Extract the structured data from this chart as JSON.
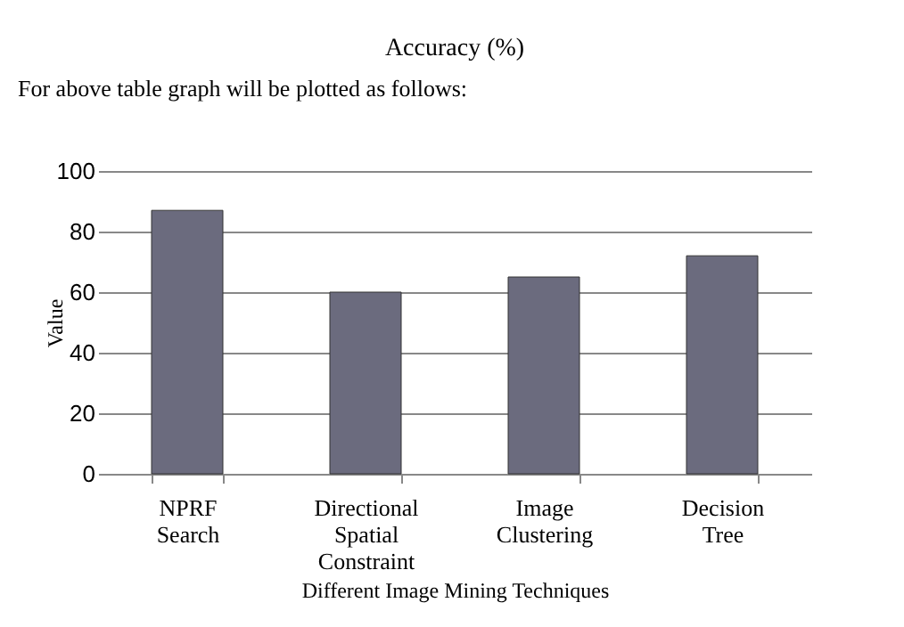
{
  "chart_data": {
    "type": "bar",
    "title": "Accuracy (%)",
    "xlabel": "Different Image Mining Techniques",
    "ylabel": "Value",
    "categories": [
      "NPRF Search",
      "Directional Spatial Constraint",
      "Image Clustering",
      "Decision Tree"
    ],
    "values": [
      87,
      60,
      65,
      72
    ],
    "color": "#6b6b7e",
    "ylim": [
      0,
      100
    ],
    "yticks": [
      0,
      20,
      40,
      60,
      80,
      100
    ],
    "grid": "y",
    "annotations": [
      "For above table graph will be plotted as follows:"
    ]
  }
}
